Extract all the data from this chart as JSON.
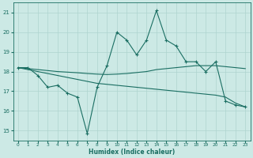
{
  "xlabel": "Humidex (Indice chaleur)",
  "ylabel": "",
  "bg_color": "#cce9e5",
  "line_color": "#1a6e62",
  "grid_color": "#aed4cf",
  "xlim": [
    -0.5,
    23.5
  ],
  "ylim": [
    14.5,
    21.5
  ],
  "xticks": [
    0,
    1,
    2,
    3,
    4,
    5,
    6,
    7,
    8,
    9,
    10,
    11,
    12,
    13,
    14,
    15,
    16,
    17,
    18,
    19,
    20,
    21,
    22,
    23
  ],
  "yticks": [
    15,
    16,
    17,
    18,
    19,
    20,
    21
  ],
  "line1_x": [
    0,
    1,
    2,
    3,
    4,
    5,
    6,
    7,
    8,
    9,
    10,
    11,
    12,
    13,
    14,
    15,
    16,
    17,
    18,
    19,
    20,
    21,
    22,
    23
  ],
  "line1_y": [
    18.2,
    18.2,
    17.8,
    17.2,
    17.3,
    16.9,
    16.7,
    14.85,
    17.2,
    18.3,
    20.0,
    19.6,
    18.85,
    19.6,
    21.1,
    19.6,
    19.3,
    18.5,
    18.5,
    18.0,
    18.5,
    16.5,
    16.3,
    16.2
  ],
  "line2_x": [
    0,
    1,
    2,
    3,
    4,
    5,
    6,
    7,
    8,
    9,
    10,
    11,
    12,
    13,
    14,
    15,
    16,
    17,
    18,
    19,
    20,
    21,
    22,
    23
  ],
  "line2_y": [
    18.2,
    18.15,
    18.1,
    18.05,
    18.0,
    17.97,
    17.94,
    17.9,
    17.87,
    17.85,
    17.87,
    17.9,
    17.95,
    18.0,
    18.1,
    18.15,
    18.2,
    18.25,
    18.3,
    18.3,
    18.3,
    18.25,
    18.2,
    18.15
  ],
  "line3_x": [
    0,
    1,
    2,
    3,
    4,
    5,
    6,
    7,
    8,
    9,
    10,
    11,
    12,
    13,
    14,
    15,
    16,
    17,
    18,
    19,
    20,
    21,
    22,
    23
  ],
  "line3_y": [
    18.2,
    18.1,
    18.0,
    17.9,
    17.8,
    17.7,
    17.6,
    17.5,
    17.4,
    17.35,
    17.3,
    17.25,
    17.2,
    17.15,
    17.1,
    17.05,
    17.0,
    16.95,
    16.9,
    16.85,
    16.8,
    16.7,
    16.4,
    16.2
  ]
}
